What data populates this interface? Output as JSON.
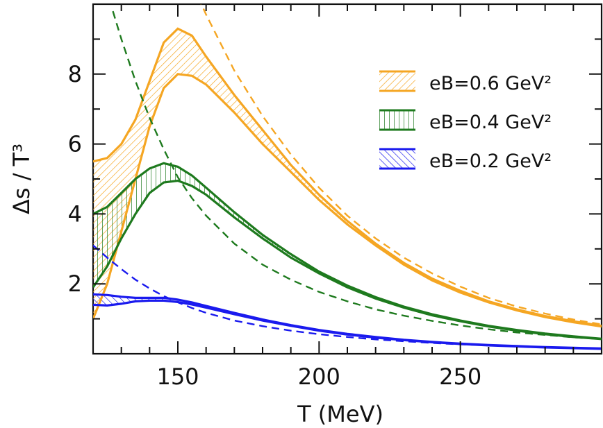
{
  "chart_data": {
    "type": "line",
    "xlabel": "T (MeV)",
    "ylabel": "Δs / T³",
    "xlim": [
      120,
      300
    ],
    "ylim": [
      0,
      10
    ],
    "x_ticks": [
      150,
      200,
      250
    ],
    "y_ticks": [
      2,
      4,
      6,
      8
    ],
    "grid": false,
    "legend_position": "top-right",
    "series": [
      {
        "name": "eB=0.6 GeV²",
        "color": "#f5a623",
        "hatch": "diagonal",
        "upper": [
          [
            120,
            5.5
          ],
          [
            125,
            5.6
          ],
          [
            130,
            6.0
          ],
          [
            135,
            6.7
          ],
          [
            140,
            7.8
          ],
          [
            145,
            8.9
          ],
          [
            150,
            9.3
          ],
          [
            155,
            9.1
          ],
          [
            160,
            8.5
          ],
          [
            170,
            7.4
          ],
          [
            180,
            6.4
          ],
          [
            190,
            5.4
          ],
          [
            200,
            4.55
          ],
          [
            210,
            3.8
          ],
          [
            220,
            3.15
          ],
          [
            230,
            2.6
          ],
          [
            240,
            2.15
          ],
          [
            250,
            1.8
          ],
          [
            260,
            1.5
          ],
          [
            270,
            1.27
          ],
          [
            280,
            1.08
          ],
          [
            290,
            0.93
          ],
          [
            300,
            0.8
          ]
        ],
        "lower": [
          [
            120,
            1.0
          ],
          [
            125,
            2.0
          ],
          [
            130,
            3.5
          ],
          [
            135,
            5.0
          ],
          [
            140,
            6.5
          ],
          [
            145,
            7.6
          ],
          [
            150,
            8.0
          ],
          [
            155,
            7.95
          ],
          [
            160,
            7.7
          ],
          [
            170,
            6.9
          ],
          [
            180,
            6.0
          ],
          [
            190,
            5.2
          ],
          [
            200,
            4.4
          ],
          [
            210,
            3.7
          ],
          [
            220,
            3.1
          ],
          [
            230,
            2.55
          ],
          [
            240,
            2.1
          ],
          [
            250,
            1.75
          ],
          [
            260,
            1.47
          ],
          [
            270,
            1.24
          ],
          [
            280,
            1.05
          ],
          [
            290,
            0.9
          ],
          [
            300,
            0.78
          ]
        ],
        "dashed": [
          [
            150,
            11.5
          ],
          [
            155,
            10.6
          ],
          [
            160,
            9.7
          ],
          [
            170,
            8.1
          ],
          [
            180,
            6.8
          ],
          [
            190,
            5.7
          ],
          [
            200,
            4.75
          ],
          [
            210,
            3.95
          ],
          [
            220,
            3.3
          ],
          [
            230,
            2.75
          ],
          [
            240,
            2.3
          ],
          [
            250,
            1.92
          ],
          [
            260,
            1.6
          ],
          [
            270,
            1.35
          ],
          [
            280,
            1.15
          ],
          [
            290,
            0.98
          ],
          [
            300,
            0.84
          ]
        ]
      },
      {
        "name": "eB=0.4 GeV²",
        "color": "#1e7a1e",
        "hatch": "vertical",
        "upper": [
          [
            120,
            4.0
          ],
          [
            125,
            4.2
          ],
          [
            130,
            4.6
          ],
          [
            135,
            5.0
          ],
          [
            140,
            5.3
          ],
          [
            145,
            5.45
          ],
          [
            150,
            5.35
          ],
          [
            155,
            5.1
          ],
          [
            160,
            4.75
          ],
          [
            170,
            4.05
          ],
          [
            180,
            3.4
          ],
          [
            190,
            2.85
          ],
          [
            200,
            2.35
          ],
          [
            210,
            1.95
          ],
          [
            220,
            1.62
          ],
          [
            230,
            1.35
          ],
          [
            240,
            1.13
          ],
          [
            250,
            0.95
          ],
          [
            260,
            0.8
          ],
          [
            270,
            0.68
          ],
          [
            280,
            0.58
          ],
          [
            290,
            0.5
          ],
          [
            300,
            0.43
          ]
        ],
        "lower": [
          [
            120,
            1.9
          ],
          [
            125,
            2.5
          ],
          [
            130,
            3.3
          ],
          [
            135,
            4.0
          ],
          [
            140,
            4.6
          ],
          [
            145,
            4.9
          ],
          [
            150,
            4.95
          ],
          [
            155,
            4.8
          ],
          [
            160,
            4.55
          ],
          [
            170,
            3.9
          ],
          [
            180,
            3.3
          ],
          [
            190,
            2.75
          ],
          [
            200,
            2.3
          ],
          [
            210,
            1.9
          ],
          [
            220,
            1.58
          ],
          [
            230,
            1.32
          ],
          [
            240,
            1.1
          ],
          [
            250,
            0.93
          ],
          [
            260,
            0.78
          ],
          [
            270,
            0.66
          ],
          [
            280,
            0.56
          ],
          [
            290,
            0.48
          ],
          [
            300,
            0.42
          ]
        ],
        "dashed": [
          [
            127,
            9.8
          ],
          [
            130,
            9.0
          ],
          [
            135,
            7.8
          ],
          [
            140,
            6.75
          ],
          [
            145,
            5.85
          ],
          [
            150,
            5.05
          ],
          [
            155,
            4.45
          ],
          [
            160,
            3.95
          ],
          [
            170,
            3.15
          ],
          [
            180,
            2.55
          ],
          [
            190,
            2.12
          ],
          [
            200,
            1.77
          ],
          [
            210,
            1.5
          ],
          [
            220,
            1.27
          ],
          [
            230,
            1.09
          ],
          [
            240,
            0.94
          ],
          [
            250,
            0.81
          ],
          [
            260,
            0.7
          ],
          [
            270,
            0.61
          ],
          [
            280,
            0.54
          ],
          [
            290,
            0.47
          ],
          [
            300,
            0.42
          ]
        ]
      },
      {
        "name": "eB=0.2 GeV²",
        "color": "#1a1aee",
        "hatch": "backdiagonal",
        "upper": [
          [
            120,
            1.7
          ],
          [
            125,
            1.68
          ],
          [
            130,
            1.63
          ],
          [
            135,
            1.6
          ],
          [
            140,
            1.6
          ],
          [
            145,
            1.6
          ],
          [
            150,
            1.55
          ],
          [
            155,
            1.47
          ],
          [
            160,
            1.37
          ],
          [
            170,
            1.17
          ],
          [
            180,
            0.98
          ],
          [
            190,
            0.82
          ],
          [
            200,
            0.68
          ],
          [
            210,
            0.57
          ],
          [
            220,
            0.48
          ],
          [
            230,
            0.4
          ],
          [
            240,
            0.34
          ],
          [
            250,
            0.29
          ],
          [
            260,
            0.25
          ],
          [
            270,
            0.22
          ],
          [
            280,
            0.19
          ],
          [
            290,
            0.17
          ],
          [
            300,
            0.15
          ]
        ],
        "lower": [
          [
            120,
            1.4
          ],
          [
            125,
            1.38
          ],
          [
            130,
            1.43
          ],
          [
            135,
            1.5
          ],
          [
            140,
            1.52
          ],
          [
            145,
            1.52
          ],
          [
            150,
            1.48
          ],
          [
            155,
            1.41
          ],
          [
            160,
            1.32
          ],
          [
            170,
            1.13
          ],
          [
            180,
            0.95
          ],
          [
            190,
            0.8
          ],
          [
            200,
            0.66
          ],
          [
            210,
            0.55
          ],
          [
            220,
            0.46
          ],
          [
            230,
            0.39
          ],
          [
            240,
            0.33
          ],
          [
            250,
            0.28
          ],
          [
            260,
            0.24
          ],
          [
            270,
            0.21
          ],
          [
            280,
            0.18
          ],
          [
            290,
            0.16
          ],
          [
            300,
            0.14
          ]
        ],
        "dashed": [
          [
            120,
            3.1
          ],
          [
            125,
            2.75
          ],
          [
            130,
            2.42
          ],
          [
            135,
            2.12
          ],
          [
            140,
            1.87
          ],
          [
            145,
            1.65
          ],
          [
            150,
            1.47
          ],
          [
            155,
            1.31
          ],
          [
            160,
            1.17
          ],
          [
            170,
            0.95
          ],
          [
            180,
            0.79
          ],
          [
            190,
            0.66
          ],
          [
            200,
            0.56
          ],
          [
            210,
            0.48
          ],
          [
            220,
            0.41
          ],
          [
            230,
            0.36
          ],
          [
            240,
            0.31
          ],
          [
            250,
            0.27
          ],
          [
            260,
            0.24
          ],
          [
            270,
            0.21
          ],
          [
            280,
            0.19
          ],
          [
            290,
            0.17
          ],
          [
            300,
            0.15
          ]
        ]
      }
    ]
  }
}
